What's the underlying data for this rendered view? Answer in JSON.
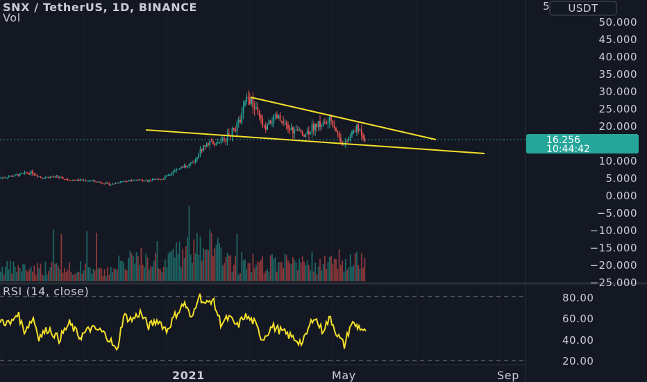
{
  "header": {
    "symbol_title": "SNX / TetherUS, 1D, BINANCE",
    "volume_label": "Vol",
    "currency_badge": "USDT"
  },
  "price_scale": {
    "labels": [
      "50.000",
      "45.000",
      "40.000",
      "35.000",
      "30.000",
      "25.000",
      "20.000",
      "10.000",
      "5.000",
      "0.000",
      "−5.000",
      "−10.000",
      "−15.000",
      "−20.000",
      "−25.000"
    ],
    "top_partial": "5"
  },
  "current_price": {
    "value": "16.256",
    "countdown": "10:44:42",
    "color": "#26a69a"
  },
  "rsi": {
    "label": "RSI (14, close)",
    "scale": [
      "80.00",
      "60.00",
      "40.00",
      "20.00"
    ],
    "color": "#f5e02a"
  },
  "time_axis": {
    "labels": [
      "2021",
      "May",
      "Sep"
    ]
  },
  "colors": {
    "bull": "#26a69a",
    "bear": "#ef5350",
    "trendline": "#f5e02a",
    "background": "#141823"
  },
  "chart_data": [
    {
      "type": "candlestick",
      "title": "SNX / TetherUS, 1D, BINANCE",
      "ylim": [
        -25,
        52
      ],
      "trendlines": [
        {
          "name": "upper",
          "from": {
            "x": "2021-02-14",
            "y": 28.5
          },
          "to": {
            "x": "2021-06-25",
            "y": 16.5
          }
        },
        {
          "name": "lower",
          "from": {
            "x": "2020-11-25",
            "y": 19.0
          },
          "to": {
            "x": "2021-07-10",
            "y": 12.3
          }
        }
      ],
      "x": [
        "2020-10-01",
        "2020-10-15",
        "2020-11-01",
        "2020-11-15",
        "2020-12-01",
        "2020-12-15",
        "2021-01-01",
        "2021-01-15",
        "2021-02-01",
        "2021-02-10",
        "2021-02-20",
        "2021-03-01",
        "2021-03-15",
        "2021-04-01",
        "2021-04-15",
        "2021-05-01",
        "2021-05-15"
      ],
      "close": [
        5.0,
        6.5,
        4.5,
        4.0,
        3.5,
        4.5,
        4.5,
        9.0,
        15.0,
        17.5,
        27.0,
        20.0,
        21.0,
        18.0,
        20.5,
        14.0,
        16.3
      ]
    },
    {
      "type": "line",
      "title": "RSI (14, close)",
      "ylim": [
        15,
        90
      ],
      "y": [
        58,
        55,
        45,
        55,
        38,
        52,
        42,
        70,
        62,
        80,
        45,
        55,
        40,
        50,
        42,
        54,
        45
      ]
    }
  ]
}
